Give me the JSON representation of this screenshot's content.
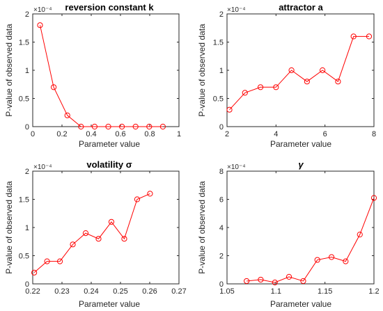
{
  "figure": {
    "line_color": "#ff0000"
  },
  "chart_data": [
    {
      "type": "line",
      "title": "reversion constant k",
      "xlabel": "Parameter value",
      "ylabel": "P-value of observed data",
      "exponent_label": "×10⁻⁴",
      "xlim": [
        0,
        1
      ],
      "ylim": [
        0,
        2
      ],
      "xticks": [
        0,
        0.2,
        0.4,
        0.6,
        0.8,
        1
      ],
      "xtick_labels": [
        "0",
        "0.2",
        "0.4",
        "0.6",
        "0.8",
        "1"
      ],
      "yticks": [
        0,
        0.5,
        1,
        1.5,
        2
      ],
      "ytick_labels": [
        "0",
        "0.5",
        "1",
        "1.5",
        "2"
      ],
      "x": [
        0.05,
        0.1433,
        0.2367,
        0.33,
        0.4233,
        0.5167,
        0.61,
        0.7033,
        0.7967,
        0.89
      ],
      "y": [
        1.8,
        0.7,
        0.2,
        0,
        0,
        0,
        0,
        0,
        0,
        0
      ]
    },
    {
      "type": "line",
      "title": "attractor a",
      "xlabel": "Parameter value",
      "ylabel": "P-value of observed data",
      "exponent_label": "×10⁻⁴",
      "xlim": [
        2,
        8
      ],
      "ylim": [
        0,
        2
      ],
      "xticks": [
        2,
        4,
        6,
        8
      ],
      "xtick_labels": [
        "2",
        "4",
        "6",
        "8"
      ],
      "yticks": [
        0,
        0.5,
        1,
        1.5,
        2
      ],
      "ytick_labels": [
        "0",
        "0.5",
        "1",
        "1.5",
        "2"
      ],
      "x": [
        2.1,
        2.733,
        3.367,
        4.0,
        4.633,
        5.267,
        5.9,
        6.533,
        7.167,
        7.8
      ],
      "y": [
        0.3,
        0.6,
        0.7,
        0.7,
        1.0,
        0.8,
        1.0,
        0.8,
        1.6,
        1.6
      ]
    },
    {
      "type": "line",
      "title": "volatility σ",
      "xlabel": "Parameter value",
      "ylabel": "P-value of observed data",
      "exponent_label": "×10⁻⁴",
      "xlim": [
        0.22,
        0.27
      ],
      "ylim": [
        0,
        2
      ],
      "xticks": [
        0.22,
        0.23,
        0.24,
        0.25,
        0.26,
        0.27
      ],
      "xtick_labels": [
        "0.22",
        "0.23",
        "0.24",
        "0.25",
        "0.26",
        "0.27"
      ],
      "yticks": [
        0,
        0.5,
        1,
        1.5,
        2
      ],
      "ytick_labels": [
        "0",
        "0.5",
        "1",
        "1.5",
        "2"
      ],
      "x": [
        0.2205,
        0.2249,
        0.2293,
        0.2337,
        0.2381,
        0.2425,
        0.2469,
        0.2513,
        0.2557,
        0.2601
      ],
      "y": [
        0.2,
        0.4,
        0.4,
        0.7,
        0.9,
        0.8,
        1.1,
        0.8,
        1.5,
        1.6
      ]
    },
    {
      "type": "line",
      "title": "γ",
      "xlabel": "Parameter value",
      "ylabel": "P-value of observed data",
      "exponent_label": "×10⁻⁴",
      "xlim": [
        1.05,
        1.2
      ],
      "ylim": [
        0,
        8
      ],
      "xticks": [
        1.05,
        1.1,
        1.15,
        1.2
      ],
      "xtick_labels": [
        "1.05",
        "1.1",
        "1.15",
        "1.2"
      ],
      "yticks": [
        0,
        2,
        4,
        6,
        8
      ],
      "ytick_labels": [
        "0",
        "2",
        "4",
        "6",
        "8"
      ],
      "x": [
        1.07,
        1.0844,
        1.0989,
        1.1133,
        1.1278,
        1.1422,
        1.1567,
        1.1711,
        1.1856,
        1.2
      ],
      "y": [
        0.2,
        0.3,
        0.1,
        0.5,
        0.2,
        1.7,
        1.9,
        1.6,
        3.5,
        6.1
      ]
    }
  ]
}
